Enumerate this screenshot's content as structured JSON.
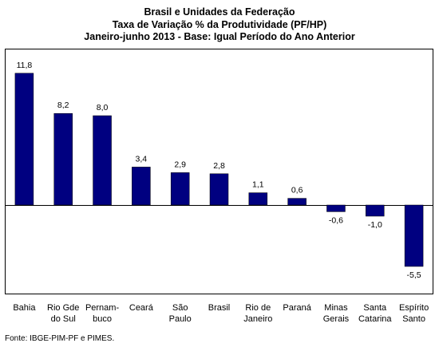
{
  "chart_data": {
    "type": "bar",
    "title_lines": [
      "Brasil e Unidades da Federação",
      "Taxa de Variação % da Produtividade (PF/HP)",
      "Janeiro-junho 2013 - Base: Igual Período do Ano Anterior"
    ],
    "categories": [
      [
        "Bahia"
      ],
      [
        "Rio Gde",
        "do Sul"
      ],
      [
        "Pernam-",
        "buco"
      ],
      [
        "Ceará"
      ],
      [
        "São",
        "Paulo"
      ],
      [
        "Brasil"
      ],
      [
        "Rio de",
        "Janeiro"
      ],
      [
        "Paraná"
      ],
      [
        "Minas",
        "Gerais"
      ],
      [
        "Santa",
        "Catarina"
      ],
      [
        "Espírito",
        "Santo"
      ]
    ],
    "values": [
      11.8,
      8.2,
      8.0,
      3.4,
      2.9,
      2.8,
      1.1,
      0.6,
      -0.6,
      -1.0,
      -5.5
    ],
    "value_labels": [
      "11,8",
      "8,2",
      "8,0",
      "3,4",
      "2,9",
      "2,8",
      "1,1",
      "0,6",
      "-0,6",
      "-1,0",
      "-5,5"
    ],
    "xlabel": "",
    "ylabel": "",
    "bar_color": "#000080",
    "grid": false,
    "legend": "none"
  },
  "source": "Fonte: IBGE-PIM-PF e PIMES."
}
